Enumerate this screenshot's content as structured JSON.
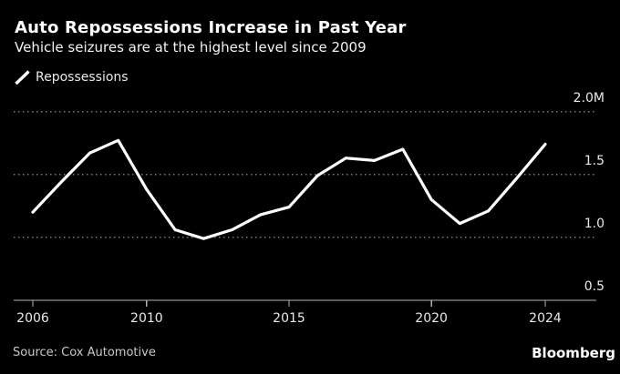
{
  "header": {
    "title": "Auto Repossessions Increase in Past Year",
    "subtitle": "Vehicle seizures are at the highest level since 2009"
  },
  "legend": {
    "label": "Repossessions"
  },
  "footer": {
    "source": "Source: Cox Automotive",
    "brand": "Bloomberg"
  },
  "colors": {
    "background": "#000000",
    "line": "#ffffff",
    "grid": "#7a7a7a",
    "axis": "#b3b3b3",
    "title_text": "#ffffff",
    "tick_text": "#e8e8e8",
    "source_text": "#c8c8c8"
  },
  "chart_data": {
    "type": "line",
    "title": "Auto Repossessions Increase in Past Year",
    "subtitle": "Vehicle seizures are at the highest level since 2009",
    "unit": "millions of vehicles",
    "x": [
      2006,
      2007,
      2008,
      2009,
      2010,
      2011,
      2012,
      2013,
      2014,
      2015,
      2016,
      2017,
      2018,
      2019,
      2020,
      2021,
      2022,
      2023,
      2024
    ],
    "series": [
      {
        "name": "Repossessions",
        "color": "#ffffff",
        "values": [
          1.2,
          1.44,
          1.67,
          1.77,
          1.38,
          1.06,
          0.99,
          1.06,
          1.18,
          1.24,
          1.49,
          1.63,
          1.61,
          1.7,
          1.3,
          1.11,
          1.21,
          1.47,
          1.74
        ]
      }
    ],
    "xticks": [
      2006,
      2010,
      2015,
      2020,
      2024
    ],
    "yticks": [
      {
        "value": 0.5,
        "label": "0.5"
      },
      {
        "value": 1.0,
        "label": "1.0"
      },
      {
        "value": 1.5,
        "label": "1.5"
      },
      {
        "value": 2.0,
        "label": "2.0M"
      }
    ],
    "xlim": [
      2006,
      2024
    ],
    "ylim": [
      0.5,
      2.0
    ],
    "grid": "horizontal-dotted",
    "legend_position": "top-left"
  }
}
